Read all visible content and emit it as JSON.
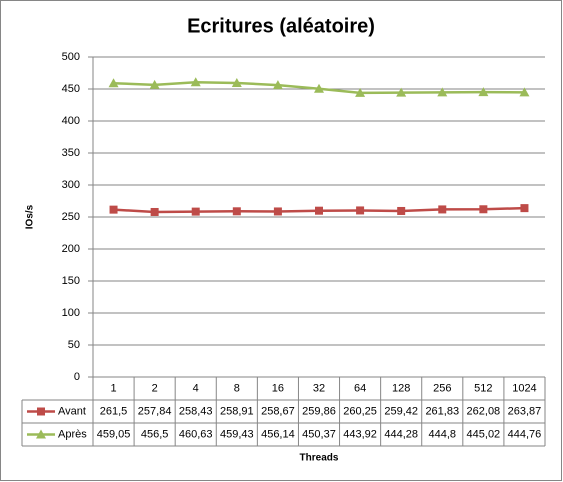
{
  "chart_data": {
    "type": "line",
    "title": "Ecritures (aléatoire)",
    "x_label": "Threads",
    "y_label": "IOs/s",
    "categories": [
      "1",
      "2",
      "4",
      "8",
      "16",
      "32",
      "64",
      "128",
      "256",
      "512",
      "1024"
    ],
    "series": [
      {
        "name": "Avant",
        "color": "#be4b48",
        "marker": "square",
        "values": [
          261.5,
          257.84,
          258.43,
          258.91,
          258.67,
          259.86,
          260.25,
          259.42,
          261.83,
          262.08,
          263.87
        ],
        "value_labels": [
          "261,5",
          "257,84",
          "258,43",
          "258,91",
          "258,67",
          "259,86",
          "260,25",
          "259,42",
          "261,83",
          "262,08",
          "263,87"
        ]
      },
      {
        "name": "Après",
        "color": "#9bbb59",
        "marker": "triangle",
        "values": [
          459.05,
          456.5,
          460.63,
          459.43,
          456.14,
          450.37,
          443.92,
          444.28,
          444.8,
          445.02,
          444.76
        ],
        "value_labels": [
          "459,05",
          "456,5",
          "460,63",
          "459,43",
          "456,14",
          "450,37",
          "443,92",
          "444,28",
          "444,8",
          "445,02",
          "444,76"
        ]
      }
    ],
    "ylim": [
      0,
      500
    ],
    "yticks": [
      0,
      50,
      100,
      150,
      200,
      250,
      300,
      350,
      400,
      450,
      500
    ],
    "grid": true
  }
}
